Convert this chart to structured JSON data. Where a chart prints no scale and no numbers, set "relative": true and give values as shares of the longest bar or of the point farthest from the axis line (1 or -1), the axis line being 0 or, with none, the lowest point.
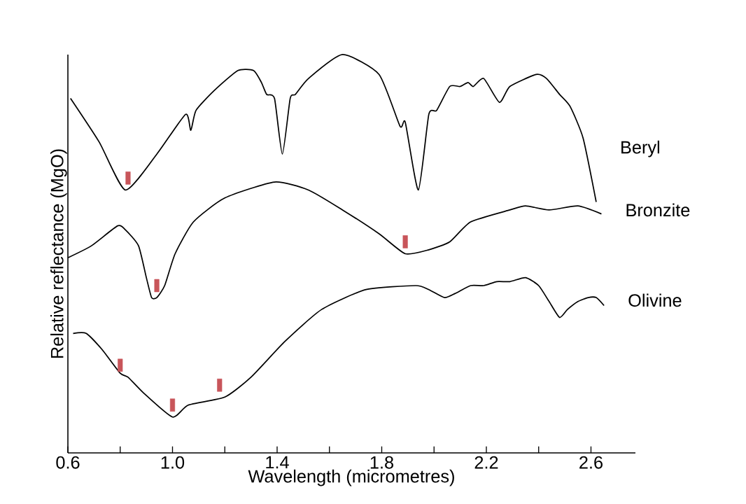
{
  "chart_data": {
    "type": "line",
    "relative": true,
    "xlabel": "Wavelength (micrometres)",
    "ylabel": "Relative reflectance (MgO)",
    "xlim": [
      0.6,
      2.77
    ],
    "xticks": [
      0.6,
      {
        "value": 0.8,
        "label": null
      },
      {
        "value": 1.0,
        "label": "1.0"
      },
      {
        "value": 1.2,
        "label": null
      },
      1.4,
      {
        "value": 1.6,
        "label": null
      },
      1.8,
      {
        "value": 2.0,
        "label": null
      },
      2.2,
      {
        "value": 2.4,
        "label": null
      },
      2.6
    ],
    "series": [
      {
        "name": "Beryl",
        "color": "#000000",
        "x": [
          0.61,
          0.72,
          0.82,
          0.94,
          1.05,
          1.07,
          1.09,
          1.16,
          1.25,
          1.31,
          1.34,
          1.36,
          1.39,
          1.42,
          1.45,
          1.47,
          1.52,
          1.65,
          1.79,
          1.87,
          1.89,
          1.94,
          1.98,
          2.01,
          2.06,
          2.1,
          2.13,
          2.15,
          2.19,
          2.25,
          2.29,
          2.39,
          2.43,
          2.48,
          2.52,
          2.57,
          2.62
        ],
        "values": [
          0.89,
          0.78,
          0.66,
          0.75,
          0.85,
          0.81,
          0.86,
          0.91,
          0.96,
          0.96,
          0.93,
          0.9,
          0.89,
          0.75,
          0.89,
          0.9,
          0.94,
          1.0,
          0.95,
          0.82,
          0.83,
          0.66,
          0.85,
          0.86,
          0.92,
          0.92,
          0.93,
          0.92,
          0.94,
          0.88,
          0.92,
          0.95,
          0.94,
          0.9,
          0.87,
          0.79,
          0.63
        ]
      },
      {
        "name": "Bronzite",
        "color": "#000000",
        "x": [
          0.6,
          0.69,
          0.79,
          0.82,
          0.87,
          0.9,
          0.92,
          0.94,
          0.97,
          1.01,
          1.08,
          1.2,
          1.39,
          1.52,
          1.65,
          1.79,
          1.89,
          1.98,
          2.06,
          2.14,
          2.29,
          2.35,
          2.44,
          2.55,
          2.64
        ],
        "values": [
          0.49,
          0.52,
          0.57,
          0.56,
          0.52,
          0.44,
          0.39,
          0.39,
          0.42,
          0.5,
          0.58,
          0.64,
          0.68,
          0.66,
          0.61,
          0.55,
          0.5,
          0.51,
          0.53,
          0.58,
          0.61,
          0.62,
          0.61,
          0.62,
          0.6
        ]
      },
      {
        "name": "Olivine",
        "color": "#000000",
        "x": [
          0.62,
          0.67,
          0.73,
          0.8,
          0.83,
          0.89,
          1.0,
          1.06,
          1.2,
          1.3,
          1.43,
          1.57,
          1.74,
          1.93,
          1.98,
          2.04,
          2.08,
          2.14,
          2.19,
          2.24,
          2.29,
          2.35,
          2.4,
          2.44,
          2.48,
          2.51,
          2.55,
          2.59,
          2.62,
          2.65
        ],
        "values": [
          0.3,
          0.3,
          0.26,
          0.2,
          0.19,
          0.15,
          0.09,
          0.12,
          0.14,
          0.19,
          0.28,
          0.36,
          0.41,
          0.42,
          0.41,
          0.39,
          0.4,
          0.42,
          0.42,
          0.43,
          0.43,
          0.44,
          0.42,
          0.38,
          0.34,
          0.36,
          0.38,
          0.39,
          0.39,
          0.37
        ]
      },
      {
        "type": "scatter",
        "marker": "square",
        "color": "#c8555a",
        "x": [
          0.83,
          0.94,
          1.89,
          0.8,
          1.0,
          1.18
        ],
        "values": [
          0.69,
          0.42,
          0.53,
          0.22,
          0.12,
          0.17
        ]
      }
    ]
  }
}
